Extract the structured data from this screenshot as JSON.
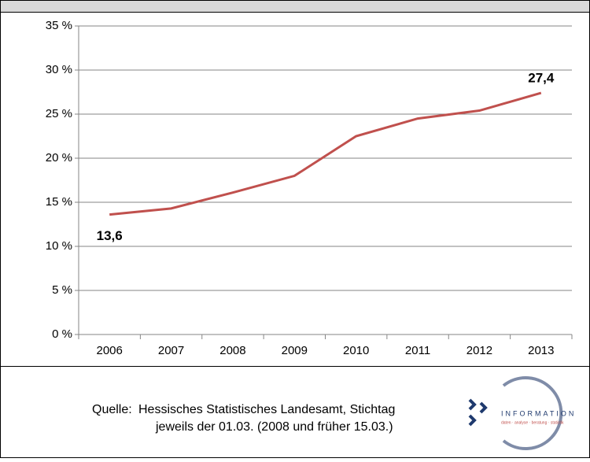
{
  "chart_data": {
    "type": "line",
    "categories": [
      "2006",
      "2007",
      "2008",
      "2009",
      "2010",
      "2011",
      "2012",
      "2013"
    ],
    "values": [
      13.6,
      14.3,
      16.1,
      18.0,
      22.5,
      24.5,
      25.4,
      27.4
    ],
    "value_labels": [
      "13,6",
      null,
      null,
      null,
      null,
      null,
      null,
      "27,4"
    ],
    "color": "#c0504d",
    "ylim": [
      0,
      35
    ],
    "yticks": [
      {
        "value": 0,
        "label": "0 %"
      },
      {
        "value": 5,
        "label": "5 %"
      },
      {
        "value": 10,
        "label": "10 %"
      },
      {
        "value": 15,
        "label": "15 %"
      },
      {
        "value": 20,
        "label": "20 %"
      },
      {
        "value": 25,
        "label": "25 %"
      },
      {
        "value": 30,
        "label": "30 %"
      },
      {
        "value": 35,
        "label": "35 %"
      }
    ],
    "grid": true
  },
  "footer": {
    "source_label": "Quelle:",
    "source_lines": [
      "Hessisches Statistisches Landesamt, Stichtag",
      "jeweils der 01.03. (2008 und früher 15.03.)"
    ]
  },
  "logo": {
    "text": "INFORMATION",
    "tagline": "daten · analyse · beratung · statistik"
  }
}
